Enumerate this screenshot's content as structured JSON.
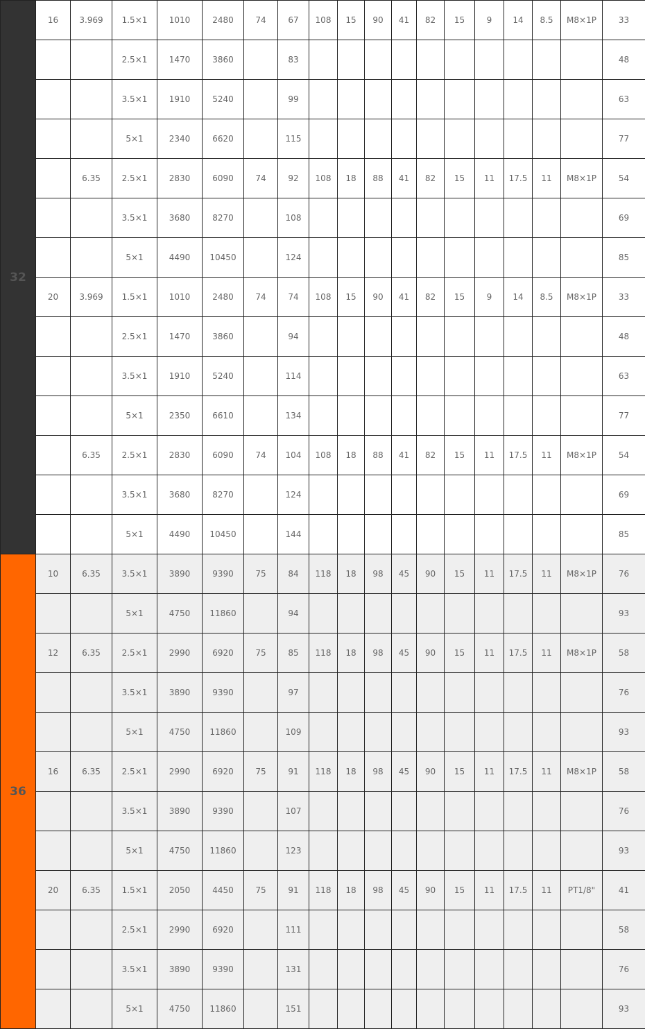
{
  "groups": [
    {
      "label": "32",
      "label_bg": "#333333",
      "row_bg": "#ffffff",
      "rows": [
        [
          "16",
          "3.969",
          "1.5×1",
          "1010",
          "2480",
          "74",
          "67",
          "108",
          "15",
          "90",
          "41",
          "82",
          "15",
          "9",
          "14",
          "8.5",
          "M8×1P",
          "33"
        ],
        [
          "",
          "",
          "2.5×1",
          "1470",
          "3860",
          "",
          "83",
          "",
          "",
          "",
          "",
          "",
          "",
          "",
          "",
          "",
          "",
          "48"
        ],
        [
          "",
          "",
          "3.5×1",
          "1910",
          "5240",
          "",
          "99",
          "",
          "",
          "",
          "",
          "",
          "",
          "",
          "",
          "",
          "",
          "63"
        ],
        [
          "",
          "",
          "5×1",
          "2340",
          "6620",
          "",
          "115",
          "",
          "",
          "",
          "",
          "",
          "",
          "",
          "",
          "",
          "",
          "77"
        ],
        [
          "",
          "6.35",
          "2.5×1",
          "2830",
          "6090",
          "74",
          "92",
          "108",
          "18",
          "88",
          "41",
          "82",
          "15",
          "11",
          "17.5",
          "11",
          "M8×1P",
          "54"
        ],
        [
          "",
          "",
          "3.5×1",
          "3680",
          "8270",
          "",
          "108",
          "",
          "",
          "",
          "",
          "",
          "",
          "",
          "",
          "",
          "",
          "69"
        ],
        [
          "",
          "",
          "5×1",
          "4490",
          "10450",
          "",
          "124",
          "",
          "",
          "",
          "",
          "",
          "",
          "",
          "",
          "",
          "",
          "85"
        ],
        [
          "20",
          "3.969",
          "1.5×1",
          "1010",
          "2480",
          "74",
          "74",
          "108",
          "15",
          "90",
          "41",
          "82",
          "15",
          "9",
          "14",
          "8.5",
          "M8×1P",
          "33"
        ],
        [
          "",
          "",
          "2.5×1",
          "1470",
          "3860",
          "",
          "94",
          "",
          "",
          "",
          "",
          "",
          "",
          "",
          "",
          "",
          "",
          "48"
        ],
        [
          "",
          "",
          "3.5×1",
          "1910",
          "5240",
          "",
          "114",
          "",
          "",
          "",
          "",
          "",
          "",
          "",
          "",
          "",
          "",
          "63"
        ],
        [
          "",
          "",
          "5×1",
          "2350",
          "6610",
          "",
          "134",
          "",
          "",
          "",
          "",
          "",
          "",
          "",
          "",
          "",
          "",
          "77"
        ],
        [
          "",
          "6.35",
          "2.5×1",
          "2830",
          "6090",
          "74",
          "104",
          "108",
          "18",
          "88",
          "41",
          "82",
          "15",
          "11",
          "17.5",
          "11",
          "M8×1P",
          "54"
        ],
        [
          "",
          "",
          "3.5×1",
          "3680",
          "8270",
          "",
          "124",
          "",
          "",
          "",
          "",
          "",
          "",
          "",
          "",
          "",
          "",
          "69"
        ],
        [
          "",
          "",
          "5×1",
          "4490",
          "10450",
          "",
          "144",
          "",
          "",
          "",
          "",
          "",
          "",
          "",
          "",
          "",
          "",
          "85"
        ]
      ]
    },
    {
      "label": "36",
      "label_bg": "#ff6600",
      "row_bg": "#efefef",
      "rows": [
        [
          "10",
          "6.35",
          "3.5×1",
          "3890",
          "9390",
          "75",
          "84",
          "118",
          "18",
          "98",
          "45",
          "90",
          "15",
          "11",
          "17.5",
          "11",
          "M8×1P",
          "76"
        ],
        [
          "",
          "",
          "5×1",
          "4750",
          "11860",
          "",
          "94",
          "",
          "",
          "",
          "",
          "",
          "",
          "",
          "",
          "",
          "",
          "93"
        ],
        [
          "12",
          "6.35",
          "2.5×1",
          "2990",
          "6920",
          "75",
          "85",
          "118",
          "18",
          "98",
          "45",
          "90",
          "15",
          "11",
          "17.5",
          "11",
          "M8×1P",
          "58"
        ],
        [
          "",
          "",
          "3.5×1",
          "3890",
          "9390",
          "",
          "97",
          "",
          "",
          "",
          "",
          "",
          "",
          "",
          "",
          "",
          "",
          "76"
        ],
        [
          "",
          "",
          "5×1",
          "4750",
          "11860",
          "",
          "109",
          "",
          "",
          "",
          "",
          "",
          "",
          "",
          "",
          "",
          "",
          "93"
        ],
        [
          "16",
          "6.35",
          "2.5×1",
          "2990",
          "6920",
          "75",
          "91",
          "118",
          "18",
          "98",
          "45",
          "90",
          "15",
          "11",
          "17.5",
          "11",
          "M8×1P",
          "58"
        ],
        [
          "",
          "",
          "3.5×1",
          "3890",
          "9390",
          "",
          "107",
          "",
          "",
          "",
          "",
          "",
          "",
          "",
          "",
          "",
          "",
          "76"
        ],
        [
          "",
          "",
          "5×1",
          "4750",
          "11860",
          "",
          "123",
          "",
          "",
          "",
          "",
          "",
          "",
          "",
          "",
          "",
          "",
          "93"
        ],
        [
          "20",
          "6.35",
          "1.5×1",
          "2050",
          "4450",
          "75",
          "91",
          "118",
          "18",
          "98",
          "45",
          "90",
          "15",
          "11",
          "17.5",
          "11",
          "PT1/8\"",
          "41"
        ],
        [
          "",
          "",
          "2.5×1",
          "2990",
          "6920",
          "",
          "111",
          "",
          "",
          "",
          "",
          "",
          "",
          "",
          "",
          "",
          "",
          "58"
        ],
        [
          "",
          "",
          "3.5×1",
          "3890",
          "9390",
          "",
          "131",
          "",
          "",
          "",
          "",
          "",
          "",
          "",
          "",
          "",
          "",
          "76"
        ],
        [
          "",
          "",
          "5×1",
          "4750",
          "11860",
          "",
          "151",
          "",
          "",
          "",
          "",
          "",
          "",
          "",
          "",
          "",
          "",
          "93"
        ]
      ]
    }
  ]
}
